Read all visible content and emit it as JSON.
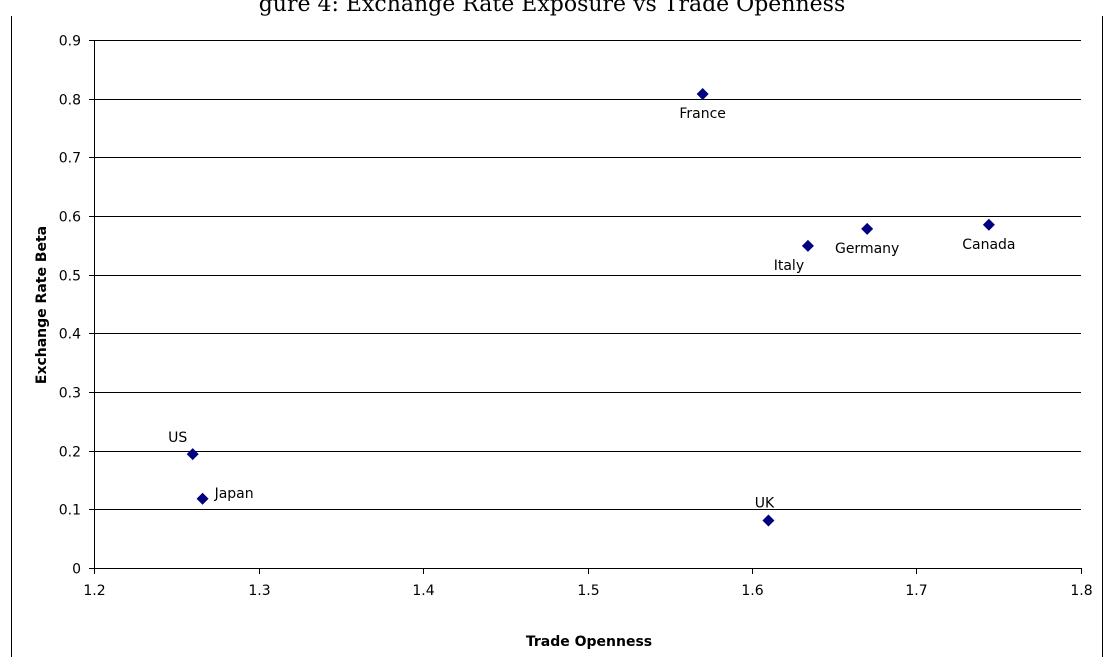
{
  "chart_data": {
    "type": "scatter",
    "title": "gure 4: Exchange Rate Exposure vs Trade Openness",
    "xlabel": "Trade Openness",
    "ylabel": "Exchange Rate Beta",
    "xlim": [
      1.2,
      1.8
    ],
    "ylim": [
      0,
      0.9
    ],
    "xticks": [
      "1.2",
      "1.3",
      "1.4",
      "1.5",
      "1.6",
      "1.7",
      "1.8"
    ],
    "yticks": [
      "0",
      "0.1",
      "0.2",
      "0.3",
      "0.4",
      "0.5",
      "0.6",
      "0.7",
      "0.8",
      "0.9"
    ],
    "grid": "horizontal",
    "legend": "none",
    "marker": "diamond",
    "marker_color": "#000080",
    "points": [
      {
        "label": "France",
        "x": 1.57,
        "y": 0.808,
        "label_position": "below"
      },
      {
        "label": "Italy",
        "x": 1.634,
        "y": 0.549,
        "label_position": "below-left"
      },
      {
        "label": "Germany",
        "x": 1.67,
        "y": 0.578,
        "label_position": "below"
      },
      {
        "label": "Canada",
        "x": 1.744,
        "y": 0.585,
        "label_position": "below"
      },
      {
        "label": "US",
        "x": 1.26,
        "y": 0.194,
        "label_position": "above-left"
      },
      {
        "label": "Japan",
        "x": 1.266,
        "y": 0.118,
        "label_position": "right"
      },
      {
        "label": "UK",
        "x": 1.61,
        "y": 0.081,
        "label_position": "above"
      }
    ]
  }
}
